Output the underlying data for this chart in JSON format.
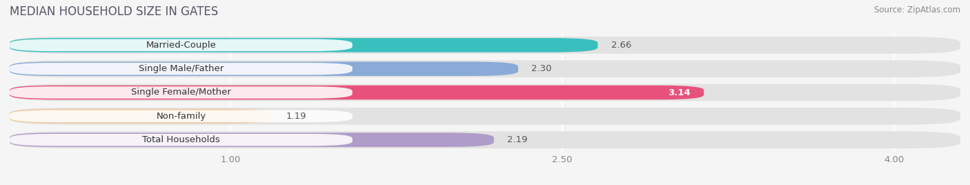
{
  "title": "MEDIAN HOUSEHOLD SIZE IN GATES",
  "source": "Source: ZipAtlas.com",
  "categories": [
    "Married-Couple",
    "Single Male/Father",
    "Single Female/Mother",
    "Non-family",
    "Total Households"
  ],
  "values": [
    2.66,
    2.3,
    3.14,
    1.19,
    2.19
  ],
  "bar_colors": [
    "#3abfbf",
    "#8aaad8",
    "#e8517a",
    "#f5c898",
    "#b09cc8"
  ],
  "value_colors": [
    "#555555",
    "#555555",
    "#ffffff",
    "#555555",
    "#555555"
  ],
  "xlim": [
    0.0,
    4.3
  ],
  "xmin": 0.0,
  "xmax": 4.3,
  "xticks": [
    1.0,
    2.5,
    4.0
  ],
  "background_color": "#f5f5f5",
  "bar_bg_color": "#e2e2e2",
  "title_fontsize": 12,
  "label_fontsize": 9.5,
  "value_fontsize": 9.5,
  "source_fontsize": 8.5
}
